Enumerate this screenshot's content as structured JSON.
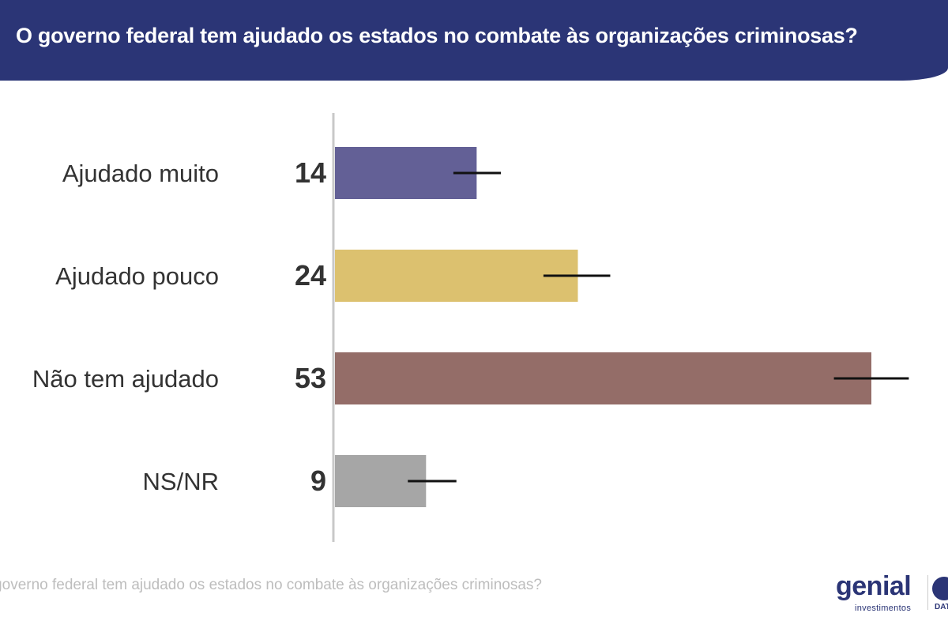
{
  "header": {
    "title": "O governo federal tem ajudado os estados no combate às organizações criminosas?"
  },
  "footer": {
    "question": "O governo federal tem ajudado os estados no combate às organizações criminosas?"
  },
  "logo": {
    "brand": "genial",
    "sub": "investimentos",
    "partner": "DAT"
  },
  "chart_data": {
    "type": "bar",
    "orientation": "horizontal",
    "categories": [
      "Ajudado muito",
      "Ajudado pouco",
      "Não tem ajudado",
      "NS/NR"
    ],
    "values": [
      14,
      24,
      53,
      9
    ],
    "error_bars": [
      [
        11.7,
        16.4
      ],
      [
        20.6,
        27.2
      ],
      [
        49.3,
        56.7
      ],
      [
        7.2,
        12
      ]
    ],
    "colors": [
      "#636096",
      "#dcc16f",
      "#946d68",
      "#a6a6a6"
    ],
    "xlim": [
      0,
      53
    ],
    "grid": false
  }
}
